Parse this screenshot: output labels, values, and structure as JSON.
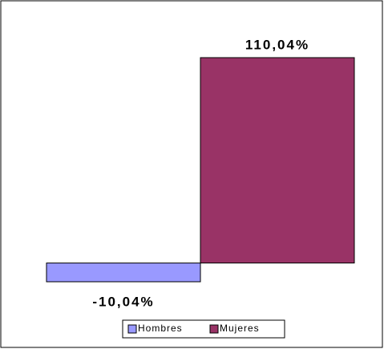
{
  "chart_data": {
    "type": "bar",
    "categories": [
      null
    ],
    "series": [
      {
        "name": "Hombres",
        "color": "#9999ff",
        "values": [
          -10.04
        ],
        "value_labels": [
          "-10,04%"
        ]
      },
      {
        "name": "Mujeres",
        "color": "#993366",
        "values": [
          110.04
        ],
        "value_labels": [
          "110,04%"
        ]
      }
    ],
    "legend": "bottom"
  }
}
